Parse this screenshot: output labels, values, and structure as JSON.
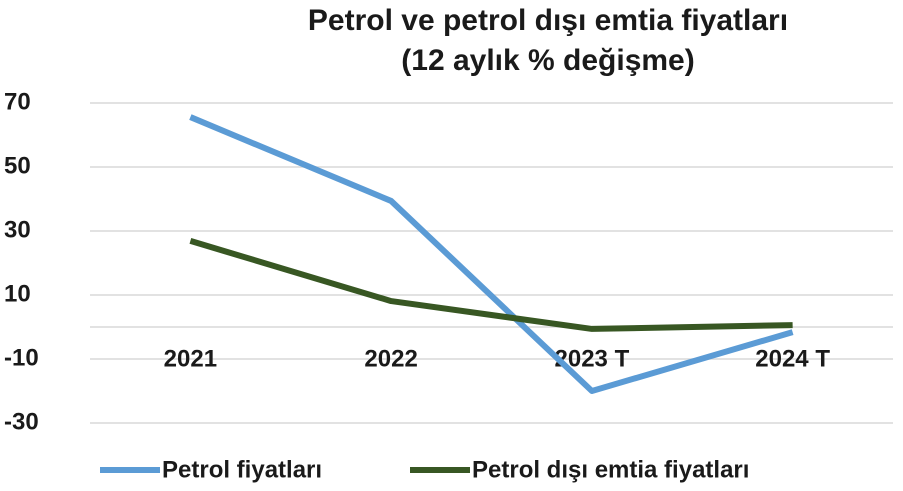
{
  "chart_data": {
    "type": "line",
    "title": [
      "Petrol ve petrol dışı emtia fiyatları",
      "(12 aylık % değişme)"
    ],
    "categories": [
      "2021",
      "2022",
      "2023 T",
      "2024 T"
    ],
    "series": [
      {
        "name": "Petrol fiyatları",
        "color": "#5b9bd5",
        "values": [
          65.6,
          39.4,
          -20,
          -1.6
        ]
      },
      {
        "name": "Petrol dışı emtia fiyatları",
        "color": "#385723",
        "values": [
          26.9,
          8.1,
          -0.6,
          0.6
        ]
      }
    ],
    "ylim": [
      -30,
      70
    ],
    "yticks": [
      -30,
      -10,
      10,
      30,
      50,
      70
    ],
    "grid": true,
    "legend": "bottom"
  }
}
